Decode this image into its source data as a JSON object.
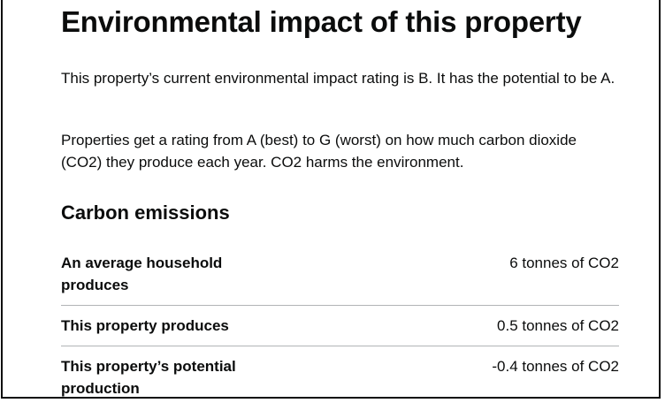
{
  "page": {
    "heading": "Environmental impact of this property",
    "paragraphs": [
      "This property’s current environmental impact rating is B. It has the potential to be A.",
      "Properties get a rating from A (best) to G (worst) on how much carbon dioxide (CO2) they produce each year. CO2 harms the environment."
    ]
  },
  "carbon": {
    "heading": "Carbon emissions",
    "rows": [
      {
        "label": "An average household produces",
        "value": "6 tonnes of CO2"
      },
      {
        "label": "This property produces",
        "value": "0.5 tonnes of CO2"
      },
      {
        "label": "This property’s potential production",
        "value": "-0.4 tonnes of CO2"
      }
    ]
  }
}
